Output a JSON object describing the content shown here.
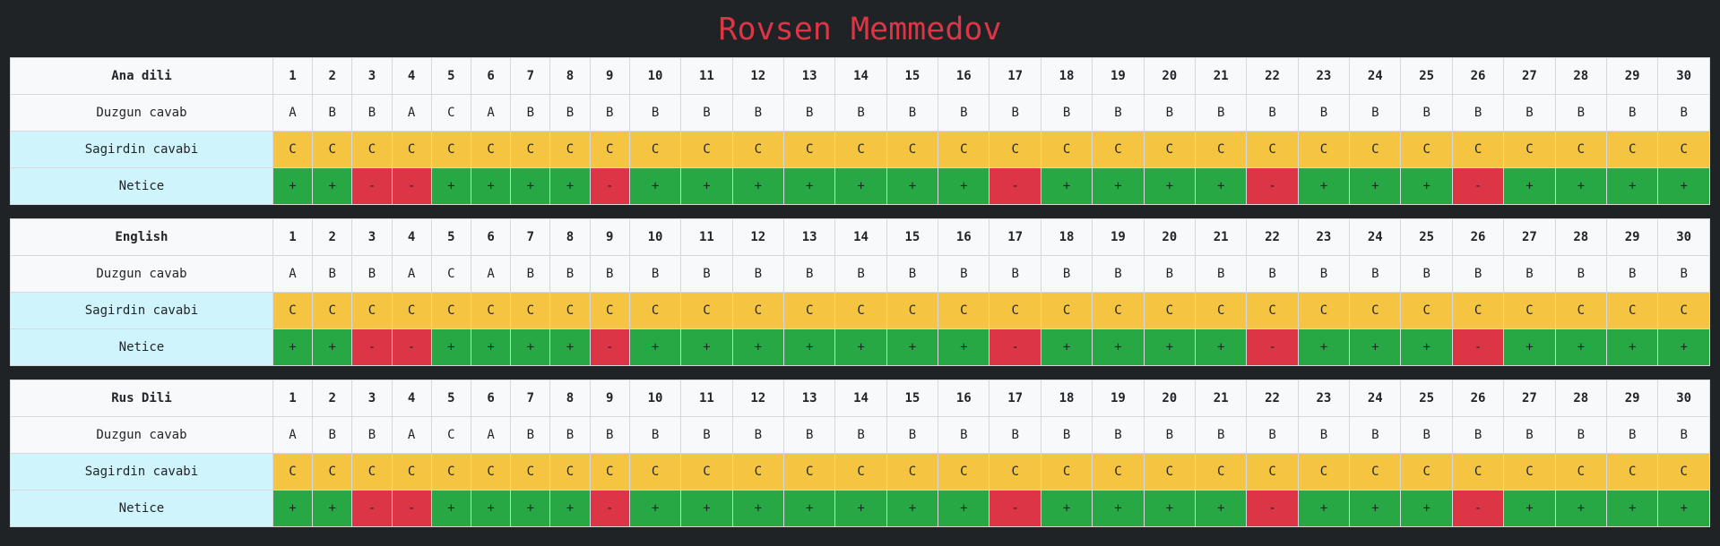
{
  "title": "Rovsen Memmedov",
  "colors": {
    "title": "#dc3545",
    "student_row": "#f5c542",
    "label_cell": "#cff4fc",
    "correct": "#28a745",
    "wrong": "#dc3545"
  },
  "rows": {
    "correct_label": "Duzgun cavab",
    "student_label": "Sagirdin cavabi",
    "result_label": "Netice"
  },
  "numbers": [
    "1",
    "2",
    "3",
    "4",
    "5",
    "6",
    "7",
    "8",
    "9",
    "10",
    "11",
    "12",
    "13",
    "14",
    "15",
    "16",
    "17",
    "18",
    "19",
    "20",
    "21",
    "22",
    "23",
    "24",
    "25",
    "26",
    "27",
    "28",
    "29",
    "30"
  ],
  "subjects": [
    {
      "name": "Ana dili",
      "correct": [
        "A",
        "B",
        "B",
        "A",
        "C",
        "A",
        "B",
        "B",
        "B",
        "B",
        "B",
        "B",
        "B",
        "B",
        "B",
        "B",
        "B",
        "B",
        "B",
        "B",
        "B",
        "B",
        "B",
        "B",
        "B",
        "B",
        "B",
        "B",
        "B",
        "B"
      ],
      "student": [
        "C",
        "C",
        "C",
        "C",
        "C",
        "C",
        "C",
        "C",
        "C",
        "C",
        "C",
        "C",
        "C",
        "C",
        "C",
        "C",
        "C",
        "C",
        "C",
        "C",
        "C",
        "C",
        "C",
        "C",
        "C",
        "C",
        "C",
        "C",
        "C",
        "C"
      ],
      "result": [
        "+",
        "+",
        "-",
        "-",
        "+",
        "+",
        "+",
        "+",
        "-",
        "+",
        "+",
        "+",
        "+",
        "+",
        "+",
        "+",
        "-",
        "+",
        "+",
        "+",
        "+",
        "-",
        "+",
        "+",
        "+",
        "-",
        "+",
        "+",
        "+",
        "+"
      ]
    },
    {
      "name": "English",
      "correct": [
        "A",
        "B",
        "B",
        "A",
        "C",
        "A",
        "B",
        "B",
        "B",
        "B",
        "B",
        "B",
        "B",
        "B",
        "B",
        "B",
        "B",
        "B",
        "B",
        "B",
        "B",
        "B",
        "B",
        "B",
        "B",
        "B",
        "B",
        "B",
        "B",
        "B"
      ],
      "student": [
        "C",
        "C",
        "C",
        "C",
        "C",
        "C",
        "C",
        "C",
        "C",
        "C",
        "C",
        "C",
        "C",
        "C",
        "C",
        "C",
        "C",
        "C",
        "C",
        "C",
        "C",
        "C",
        "C",
        "C",
        "C",
        "C",
        "C",
        "C",
        "C",
        "C"
      ],
      "result": [
        "+",
        "+",
        "-",
        "-",
        "+",
        "+",
        "+",
        "+",
        "-",
        "+",
        "+",
        "+",
        "+",
        "+",
        "+",
        "+",
        "-",
        "+",
        "+",
        "+",
        "+",
        "-",
        "+",
        "+",
        "+",
        "-",
        "+",
        "+",
        "+",
        "+"
      ]
    },
    {
      "name": "Rus Dili",
      "correct": [
        "A",
        "B",
        "B",
        "A",
        "C",
        "A",
        "B",
        "B",
        "B",
        "B",
        "B",
        "B",
        "B",
        "B",
        "B",
        "B",
        "B",
        "B",
        "B",
        "B",
        "B",
        "B",
        "B",
        "B",
        "B",
        "B",
        "B",
        "B",
        "B",
        "B"
      ],
      "student": [
        "C",
        "C",
        "C",
        "C",
        "C",
        "C",
        "C",
        "C",
        "C",
        "C",
        "C",
        "C",
        "C",
        "C",
        "C",
        "C",
        "C",
        "C",
        "C",
        "C",
        "C",
        "C",
        "C",
        "C",
        "C",
        "C",
        "C",
        "C",
        "C",
        "C"
      ],
      "result": [
        "+",
        "+",
        "-",
        "-",
        "+",
        "+",
        "+",
        "+",
        "-",
        "+",
        "+",
        "+",
        "+",
        "+",
        "+",
        "+",
        "-",
        "+",
        "+",
        "+",
        "+",
        "-",
        "+",
        "+",
        "+",
        "-",
        "+",
        "+",
        "+",
        "+"
      ]
    }
  ]
}
